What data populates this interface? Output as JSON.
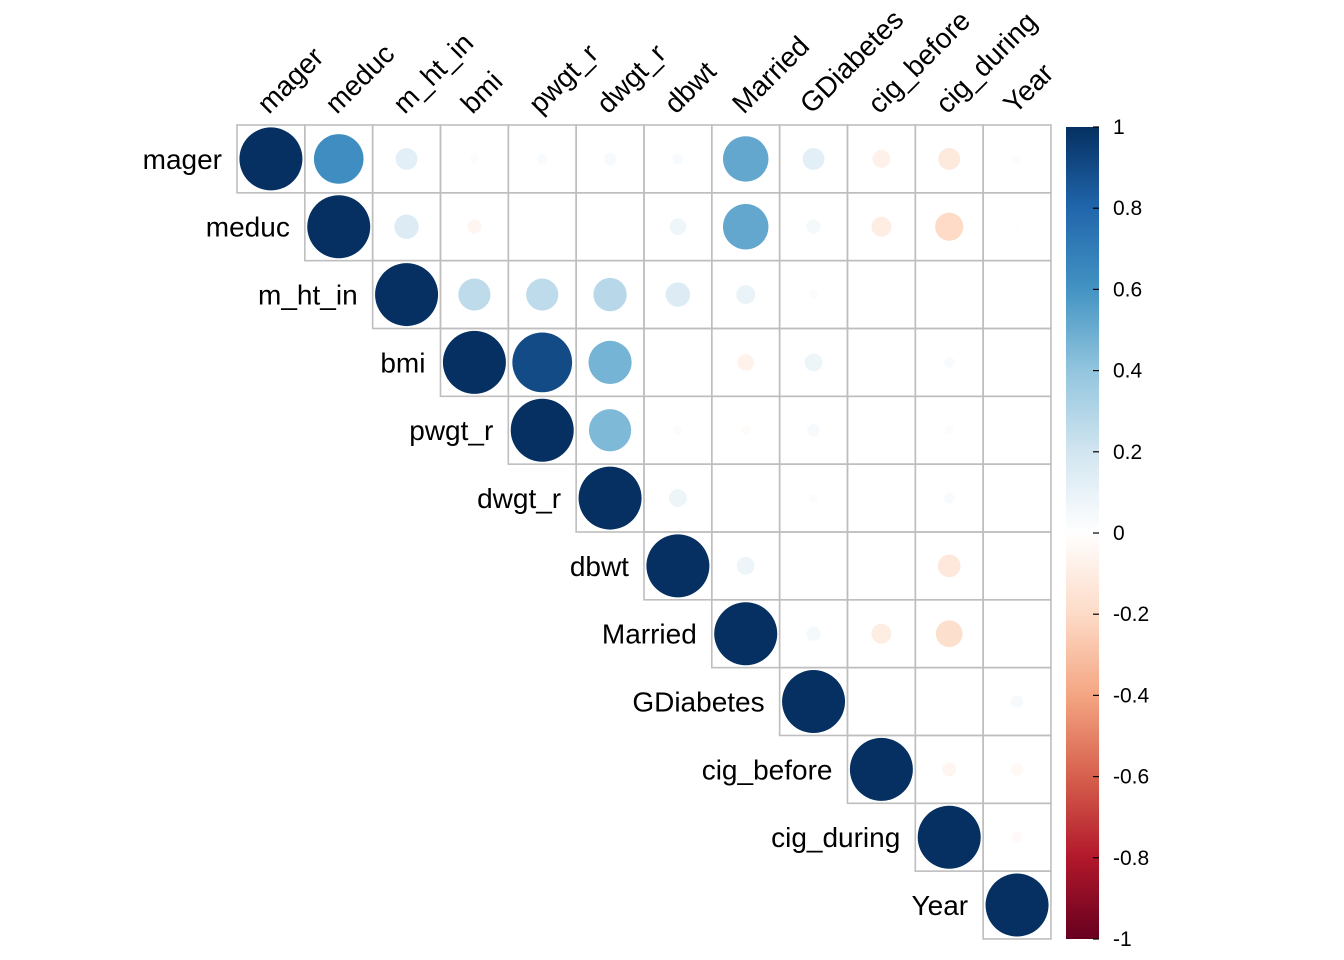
{
  "chart_data": {
    "type": "heatmap",
    "variant": "correlation-matrix-upper-circles",
    "title": "",
    "variables": [
      "mager",
      "meduc",
      "m_ht_in",
      "bmi",
      "pwgt_r",
      "dwgt_r",
      "dbwt",
      "Married",
      "GDiabetes",
      "cig_before",
      "cig_during",
      "Year"
    ],
    "matrix": [
      [
        1,
        0.62,
        0.12,
        0.02,
        0.03,
        0.04,
        0.03,
        0.52,
        0.12,
        -0.08,
        -0.12,
        0.02
      ],
      [
        null,
        1,
        0.15,
        -0.05,
        0,
        0,
        0.07,
        0.52,
        0.05,
        -0.1,
        -0.2,
        0.01
      ],
      [
        null,
        null,
        1,
        0.26,
        0.26,
        0.28,
        0.15,
        0.09,
        0.02,
        0,
        0.01,
        0
      ],
      [
        null,
        null,
        null,
        1,
        0.9,
        0.47,
        0.01,
        -0.07,
        0.08,
        0,
        0.03,
        0
      ],
      [
        null,
        null,
        null,
        null,
        1,
        0.45,
        0.02,
        -0.02,
        0.04,
        0,
        0.02,
        0
      ],
      [
        null,
        null,
        null,
        null,
        null,
        1,
        0.08,
        0.01,
        0.02,
        0.01,
        0.03,
        0
      ],
      [
        null,
        null,
        null,
        null,
        null,
        null,
        1,
        0.08,
        0,
        0.01,
        -0.13,
        0.01
      ],
      [
        null,
        null,
        null,
        null,
        null,
        null,
        null,
        1,
        0.05,
        -0.1,
        -0.18,
        0
      ],
      [
        null,
        null,
        null,
        null,
        null,
        null,
        null,
        null,
        1,
        0,
        0,
        0.04
      ],
      [
        null,
        null,
        null,
        null,
        null,
        null,
        null,
        null,
        null,
        1,
        -0.05,
        -0.04
      ],
      [
        null,
        null,
        null,
        null,
        null,
        null,
        null,
        null,
        null,
        null,
        1,
        -0.03
      ],
      [
        null,
        null,
        null,
        null,
        null,
        null,
        null,
        null,
        null,
        null,
        null,
        1
      ]
    ],
    "colorbar": {
      "range": [
        -1,
        1
      ],
      "ticks": [
        "1",
        "0.8",
        "0.6",
        "0.4",
        "0.2",
        "0",
        "-0.2",
        "-0.4",
        "-0.6",
        "-0.8",
        "-1"
      ],
      "tick_values": [
        1,
        0.8,
        0.6,
        0.4,
        0.2,
        0,
        -0.2,
        -0.4,
        -0.6,
        -0.8,
        -1
      ],
      "position": "right"
    },
    "palette": [
      "#67001F",
      "#B2182B",
      "#D6604D",
      "#F4A582",
      "#FDDBC7",
      "#FFFFFF",
      "#D1E5F0",
      "#92C5DE",
      "#4393C3",
      "#2166AC",
      "#053061"
    ],
    "grid": true,
    "grid_color": "#BEBEBE"
  }
}
